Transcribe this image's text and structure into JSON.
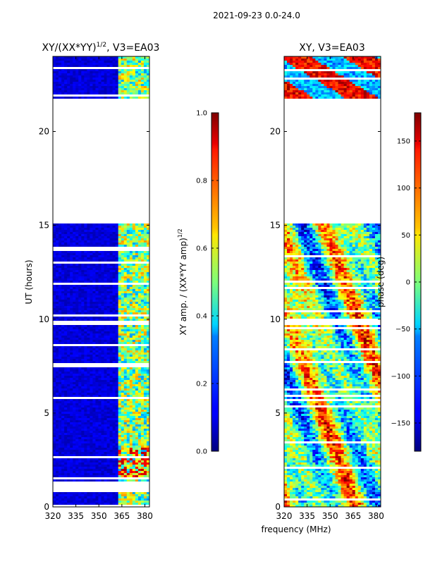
{
  "suptitle": "2021-09-23 0.0-24.0",
  "chart_data": [
    {
      "type": "heatmap",
      "title": "XY/(XX*YY)^{1/2}, V3=EA03",
      "title_main": "XY/(XX*YY)",
      "title_sup": "1/2",
      "title_tail": ", V3=EA03",
      "xlabel": "",
      "ylabel": "UT (hours)",
      "xlim": [
        320,
        383
      ],
      "ylim": [
        0,
        24
      ],
      "x_ticks": [
        "320",
        "335",
        "350",
        "365",
        "380"
      ],
      "x_tick_values": [
        320,
        335,
        350,
        365,
        380
      ],
      "y_ticks": [
        "0",
        "5",
        "10",
        "15",
        "20"
      ],
      "y_tick_values": [
        0,
        5,
        10,
        15,
        20
      ],
      "colorbar": {
        "label": "XY amp. / (XX*YY amp)^{1/2}",
        "label_main": "XY amp. / (XX*YY amp)",
        "label_sup": "1/2",
        "range": [
          0.0,
          1.0
        ],
        "ticks": [
          "0.0",
          "0.2",
          "0.4",
          "0.6",
          "0.8",
          "1.0"
        ],
        "tick_values": [
          0.0,
          0.2,
          0.4,
          0.6,
          0.8,
          1.0
        ],
        "colormap": "jet"
      },
      "data_gaps_hours": [
        [
          15.1,
          21.8
        ]
      ],
      "approx_background_value": 0.05,
      "rfi_band_mhz": [
        362,
        383
      ],
      "approx_rfi_value": 0.5
    },
    {
      "type": "heatmap",
      "title": "XY, V3=EA03",
      "xlabel": "frequency (MHz)",
      "ylabel": "",
      "xlim": [
        320,
        383
      ],
      "ylim": [
        0,
        24
      ],
      "x_ticks": [
        "320",
        "335",
        "350",
        "365",
        "380"
      ],
      "x_tick_values": [
        320,
        335,
        350,
        365,
        380
      ],
      "y_ticks": [
        "0",
        "5",
        "10",
        "15",
        "20"
      ],
      "y_tick_values": [
        0,
        5,
        10,
        15,
        20
      ],
      "colorbar": {
        "label": "phase (deg)",
        "range": [
          -180,
          180
        ],
        "ticks": [
          "−150",
          "−100",
          "−50",
          "0",
          "50",
          "100",
          "150"
        ],
        "tick_values": [
          -150,
          -100,
          -50,
          0,
          50,
          100,
          150
        ],
        "colormap": "jet"
      },
      "data_gaps_hours": [
        [
          15.1,
          21.8
        ]
      ]
    }
  ]
}
